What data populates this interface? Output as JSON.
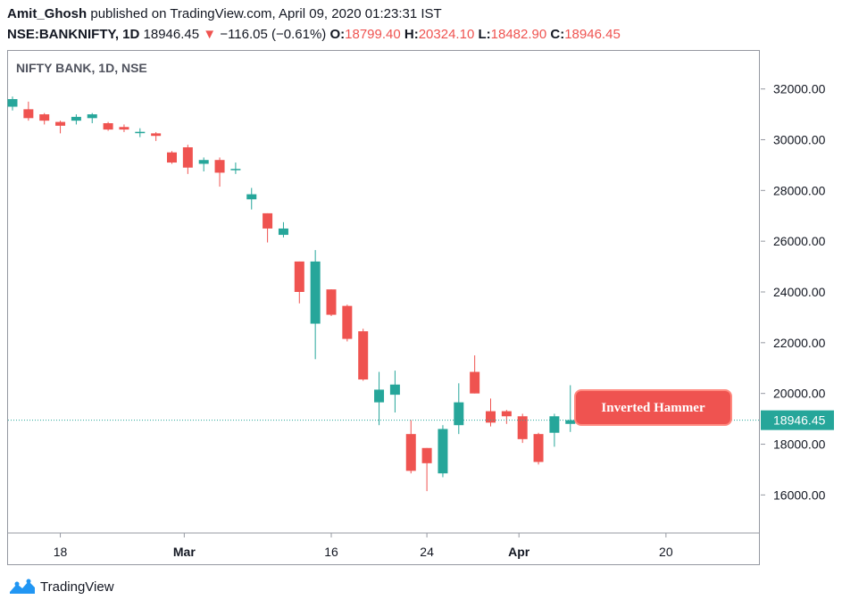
{
  "header": {
    "author": "Amit_Ghosh",
    "published_text": " published on TradingView.com, April 09, 2020 01:23:31 IST",
    "symbol": "NSE:BANKNIFTY, 1D",
    "price": "18946.45",
    "change_arrow": "▼",
    "change": "−116.05 (−0.61%)",
    "o_label": "O:",
    "o_value": "18799.40",
    "h_label": "H:",
    "h_value": "20324.10",
    "l_label": "L:",
    "l_value": "18482.90",
    "c_label": "C:",
    "c_value": "18946.45"
  },
  "footer": {
    "brand": "TradingView"
  },
  "colors": {
    "up": "#26a69a",
    "down": "#ef5350",
    "axis_text": "#131722",
    "last_price_bg": "#26a69a"
  },
  "chart_data": {
    "type": "candlestick",
    "title": "NIFTY BANK, 1D, NSE",
    "ylim": [
      14500,
      33500
    ],
    "y_ticks": [
      16000,
      18000,
      20000,
      22000,
      24000,
      26000,
      28000,
      30000,
      32000
    ],
    "y_tick_labels": [
      "16000.00",
      "18000.00",
      "20000.00",
      "22000.00",
      "24000.00",
      "26000.00",
      "28000.00",
      "30000.00",
      "32000.00"
    ],
    "x_ticks": [
      {
        "label": "18",
        "index": 3
      },
      {
        "label": "Mar",
        "index": 11
      },
      {
        "label": "16",
        "index": 20
      },
      {
        "label": "24",
        "index": 26
      },
      {
        "label": "Apr",
        "index": 32
      },
      {
        "label": "20",
        "index": 41
      }
    ],
    "candles": [
      {
        "o": 31300,
        "h": 31700,
        "l": 31150,
        "c": 31600
      },
      {
        "o": 31200,
        "h": 31500,
        "l": 30750,
        "c": 30850
      },
      {
        "o": 31000,
        "h": 31050,
        "l": 30600,
        "c": 30750
      },
      {
        "o": 30700,
        "h": 30750,
        "l": 30250,
        "c": 30550
      },
      {
        "o": 30750,
        "h": 31000,
        "l": 30600,
        "c": 30900
      },
      {
        "o": 30850,
        "h": 31050,
        "l": 30650,
        "c": 31000
      },
      {
        "o": 30650,
        "h": 30700,
        "l": 30350,
        "c": 30400
      },
      {
        "o": 30500,
        "h": 30600,
        "l": 30300,
        "c": 30400
      },
      {
        "o": 30300,
        "h": 30450,
        "l": 30100,
        "c": 30310
      },
      {
        "o": 30250,
        "h": 30300,
        "l": 29950,
        "c": 30150
      },
      {
        "o": 29500,
        "h": 29550,
        "l": 29050,
        "c": 29100
      },
      {
        "o": 29700,
        "h": 29800,
        "l": 28650,
        "c": 28900
      },
      {
        "o": 29050,
        "h": 29300,
        "l": 28750,
        "c": 29200
      },
      {
        "o": 29200,
        "h": 29300,
        "l": 28150,
        "c": 28700
      },
      {
        "o": 28800,
        "h": 29100,
        "l": 28650,
        "c": 28850
      },
      {
        "o": 27650,
        "h": 28100,
        "l": 27250,
        "c": 27850
      },
      {
        "o": 27100,
        "h": 27100,
        "l": 25950,
        "c": 26500
      },
      {
        "o": 26250,
        "h": 26750,
        "l": 26150,
        "c": 26500
      },
      {
        "o": 25200,
        "h": 25200,
        "l": 23550,
        "c": 24000
      },
      {
        "o": 22750,
        "h": 25650,
        "l": 21350,
        "c": 25200
      },
      {
        "o": 24100,
        "h": 24100,
        "l": 23050,
        "c": 23100
      },
      {
        "o": 23450,
        "h": 23500,
        "l": 22050,
        "c": 22150
      },
      {
        "o": 22450,
        "h": 22550,
        "l": 20500,
        "c": 20550
      },
      {
        "o": 19650,
        "h": 20850,
        "l": 18750,
        "c": 20150
      },
      {
        "o": 19950,
        "h": 20900,
        "l": 19250,
        "c": 20350
      },
      {
        "o": 18400,
        "h": 18950,
        "l": 16850,
        "c": 16950
      },
      {
        "o": 17850,
        "h": 17850,
        "l": 16150,
        "c": 17250
      },
      {
        "o": 16850,
        "h": 18750,
        "l": 16700,
        "c": 18600
      },
      {
        "o": 18750,
        "h": 20400,
        "l": 18400,
        "c": 19650
      },
      {
        "o": 20850,
        "h": 21500,
        "l": 20000,
        "c": 20000
      },
      {
        "o": 19300,
        "h": 19800,
        "l": 18700,
        "c": 18850
      },
      {
        "o": 19300,
        "h": 19350,
        "l": 18800,
        "c": 19100
      },
      {
        "o": 19100,
        "h": 19200,
        "l": 18050,
        "c": 18200
      },
      {
        "o": 18400,
        "h": 18450,
        "l": 17200,
        "c": 17300
      },
      {
        "o": 18450,
        "h": 19200,
        "l": 17900,
        "c": 19100
      },
      {
        "o": 18800,
        "h": 20324.1,
        "l": 18482.9,
        "c": 18946.45
      }
    ],
    "last_price": 18946.45,
    "last_price_label": "18946.45",
    "annotations": [
      {
        "text": "Inverted Hammer",
        "near_index": 35
      }
    ]
  }
}
